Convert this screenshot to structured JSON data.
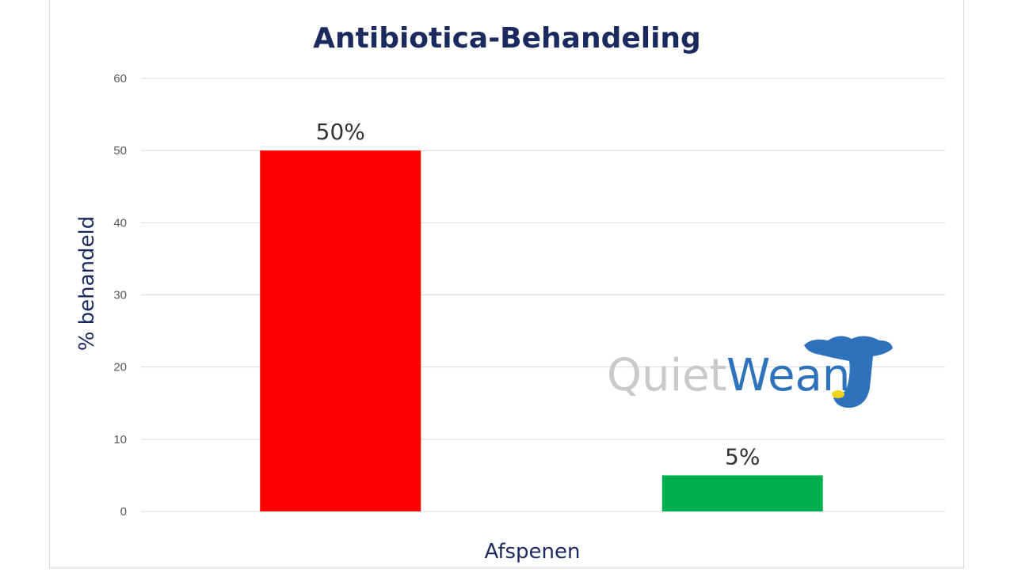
{
  "chart_data": {
    "type": "bar",
    "title": "Antibiotica-Behandeling",
    "xlabel": "Afspenen",
    "ylabel": "% behandeld",
    "ylim": [
      0,
      60
    ],
    "yticks": [
      0,
      10,
      20,
      30,
      40,
      50,
      60
    ],
    "grid": true,
    "legend": "none",
    "bars": [
      {
        "value": 50,
        "label": "50%",
        "color": "#ff0000"
      },
      {
        "value": 5,
        "label": "5%",
        "color": "#00b050"
      }
    ]
  },
  "logo": {
    "text_quiet": "Quiet",
    "text_wean": "Wean",
    "colors": {
      "quiet": "#c9c9c9",
      "wean": "#2f72bc",
      "accent": "#f2d31b"
    }
  }
}
